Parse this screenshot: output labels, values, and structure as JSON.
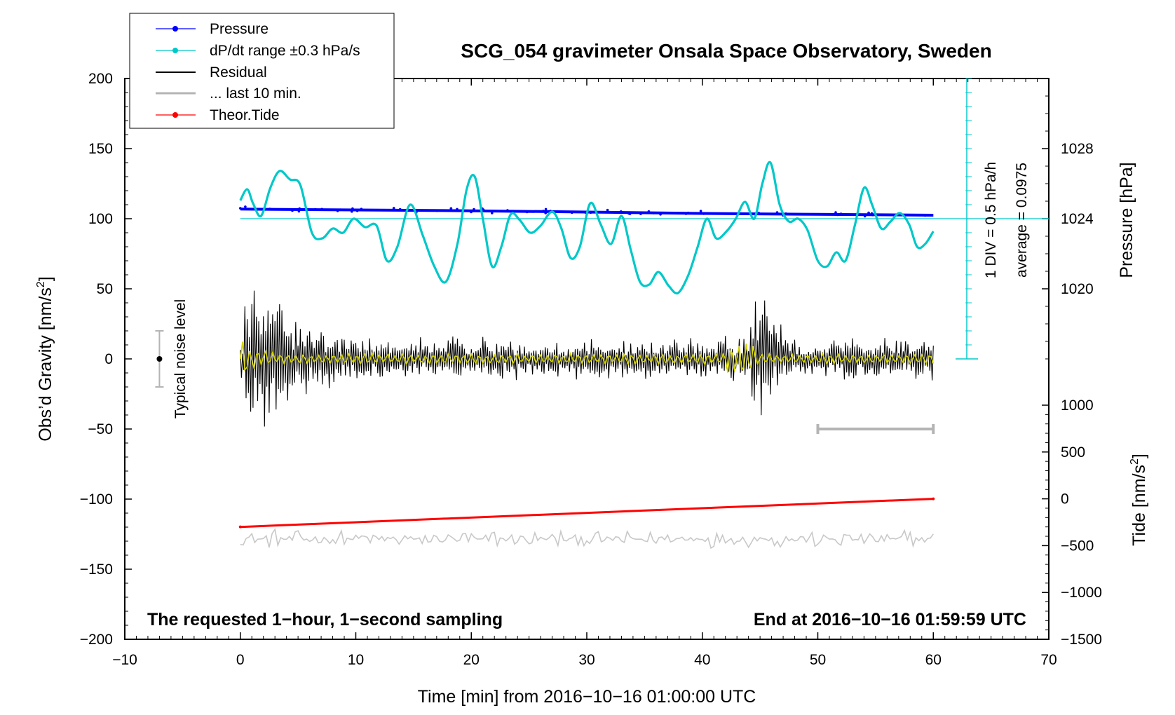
{
  "chart_data": {
    "type": "line",
    "title": "SCG_054 gravimeter Onsala Space Observatory, Sweden",
    "xlabel": "Time [min] from 2016−10−16 01:00:00 UTC",
    "ylabel_left": "Obs’d Gravity [nm/s²]",
    "ylabel_left_main": "Obs’d Gravity [nm/s",
    "ylabel_left_sup": "2",
    "ylabel_left_end": "]",
    "ylabel_right_pressure": "Pressure [hPa]",
    "ylabel_right_tide": "Tide [nm/s²]",
    "ylabel_right_tide_main": "Tide [nm/s",
    "ylabel_right_tide_sup": "2",
    "ylabel_right_tide_end": "]",
    "xlim": [
      -10,
      70
    ],
    "ylim_left": [
      -200,
      200
    ],
    "x_ticks": [
      -10,
      0,
      10,
      20,
      30,
      40,
      50,
      60,
      70
    ],
    "x_tick_labels": [
      "−10",
      "0",
      "10",
      "20",
      "30",
      "40",
      "50",
      "60",
      "70"
    ],
    "y_left_ticks": [
      200,
      150,
      100,
      50,
      0,
      -50,
      -100,
      -150,
      -200
    ],
    "y_left_tick_labels": [
      "200",
      "150",
      "100",
      "50",
      "0",
      "−50",
      "−100",
      "−150",
      "−200"
    ],
    "pressure_ticks": [
      1028,
      1024,
      1020
    ],
    "pressure_tick_gravity_positions": [
      150,
      100,
      50
    ],
    "pressure_tick_labels": [
      "1028",
      "1024",
      "1020"
    ],
    "tide_ticks": [
      1000,
      500,
      0,
      -500,
      -1000,
      -1500
    ],
    "tide_tick_labels": [
      "1000",
      "500",
      "0",
      "−500",
      "−1000",
      "−1500"
    ],
    "tide_axis_gravity_range": [
      -200,
      -33
    ],
    "tide_axis_value_range": [
      -1500,
      1000
    ],
    "legend": [
      {
        "label": "Pressure",
        "color": "#0000ff",
        "marker": true
      },
      {
        "label": "dP/dt range ±0.3 hPa/s",
        "color": "#00c8c8",
        "marker": true
      },
      {
        "label": "Residual",
        "color": "#000000",
        "marker": false
      },
      {
        "label": "... last 10 min.",
        "color": "#b4b4b4",
        "marker": false
      },
      {
        "label": "Theor.Tide",
        "color": "#ff0000",
        "marker": true
      }
    ],
    "series": [
      {
        "name": "Pressure",
        "color": "#0000ff",
        "unit": "hPa",
        "x": [
          0,
          10,
          20,
          30,
          40,
          50,
          60
        ],
        "values": [
          1024.55,
          1024.5,
          1024.45,
          1024.38,
          1024.3,
          1024.25,
          1024.2
        ]
      },
      {
        "name": "dP/dt (scaled, gravity units)",
        "color": "#00c8c8",
        "x": [
          0,
          0.6,
          1.1,
          1.8,
          2.6,
          3.4,
          4.3,
          5.2,
          6.2,
          7.1,
          8.0,
          8.9,
          9.8,
          10.8,
          11.8,
          12.7,
          13.6,
          14.7,
          15.8,
          16.8,
          17.8,
          18.8,
          19.6,
          20.3,
          21.0,
          21.8,
          22.6,
          23.4,
          24.2,
          25.1,
          26.0,
          27.0,
          27.8,
          28.6,
          29.4,
          30.3,
          31.2,
          32.1,
          33.0,
          33.8,
          34.6,
          35.4,
          36.2,
          37.1,
          37.9,
          38.8,
          39.6,
          40.4,
          41.2,
          42.1,
          42.9,
          43.7,
          44.5,
          45.2,
          45.9,
          46.7,
          47.5,
          48.3,
          49.1,
          50.0,
          50.8,
          51.6,
          52.4,
          53.2,
          54.0,
          54.7,
          55.5,
          56.3,
          57.1,
          57.9,
          58.6,
          59.3,
          60.0
        ],
        "values": [
          113,
          121,
          111,
          102,
          122,
          134,
          128,
          124,
          90,
          86,
          93,
          90,
          100,
          94,
          95,
          70,
          80,
          110,
          88,
          66,
          55,
          82,
          121,
          130,
          100,
          66,
          80,
          103,
          99,
          90,
          95,
          105,
          93,
          72,
          80,
          111,
          96,
          82,
          102,
          78,
          55,
          53,
          62,
          52,
          47,
          60,
          80,
          100,
          86,
          91,
          100,
          112,
          100,
          125,
          140,
          110,
          98,
          100,
          92,
          70,
          66,
          76,
          70,
          95,
          122,
          110,
          93,
          98,
          104,
          96,
          80,
          82,
          91
        ]
      },
      {
        "name": "Residual",
        "color": "#000000",
        "x_start": 0,
        "x_end": 60,
        "samples": 600,
        "envelope_events": [
          {
            "x": 1.0,
            "amplitude": 75,
            "decay_min": 6
          },
          {
            "x": 44.8,
            "amplitude": 60,
            "decay_min": 2.5
          }
        ],
        "background_noise_amplitude": 12
      },
      {
        "name": "Residual (smoothed)",
        "color": "#d2d200",
        "x_start": 0,
        "x_end": 60,
        "amplitude": 4
      },
      {
        "name": "... last 10 min.",
        "color": "#b4b4b4",
        "x_range": [
          50,
          60
        ],
        "y": -50
      },
      {
        "name": "Theor.Tide",
        "color": "#ff0000",
        "unit": "nm/s²",
        "x": [
          0,
          60
        ],
        "values": [
          -300,
          0
        ]
      },
      {
        "name": "Tide noise trace",
        "color": "#c8c8c8",
        "x_start": 0,
        "x_end": 60,
        "center_tide": -430,
        "amplitude_tide": 120
      }
    ],
    "dpdt_scale": {
      "div_label": "1 DIV = 0.5 hPa/h",
      "average_label": "average = 0.0975",
      "x": 62.9,
      "y_top": 200,
      "y_bottom": 0,
      "baseline": 100,
      "divisions": 20
    },
    "noise_level": {
      "label": "Typical noise level",
      "x": -7,
      "y_center": 0,
      "y_half_range": 20
    },
    "annotation_left": "The requested 1−hour, 1−second sampling",
    "annotation_right": "End at 2016−10−16 01:59:59 UTC"
  }
}
